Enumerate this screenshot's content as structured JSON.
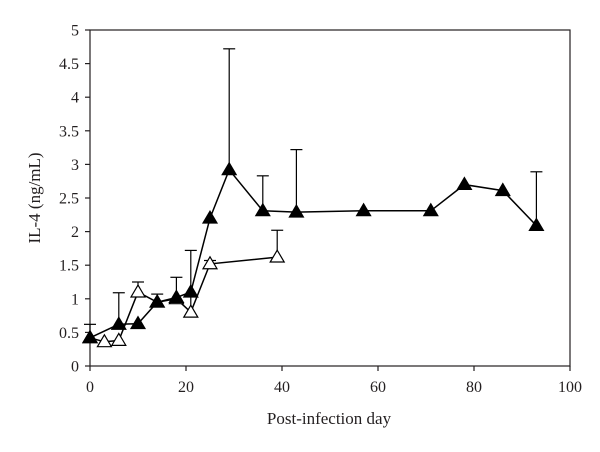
{
  "chart_data": {
    "type": "line",
    "xlabel": "Post-infection day",
    "ylabel": "IL-4 (ng/mL)",
    "xlim": [
      0,
      100
    ],
    "ylim": [
      0,
      5
    ],
    "xticks": [
      0,
      20,
      40,
      60,
      80,
      100
    ],
    "yticks": [
      0,
      0.5,
      1,
      1.5,
      2,
      2.5,
      3,
      3.5,
      4,
      4.5,
      5
    ],
    "xtick_labels": [
      "0",
      "20",
      "40",
      "60",
      "80",
      "100"
    ],
    "ytick_labels": [
      "0",
      "0.5",
      "1",
      "1.5",
      "2",
      "2.5",
      "3",
      "3.5",
      "4",
      "4.5",
      "5"
    ],
    "grid": false,
    "series": [
      {
        "marker": "filled-triangle",
        "color": "#000000",
        "points": [
          {
            "x": 0,
            "y": 0.42,
            "err": 0.2
          },
          {
            "x": 6,
            "y": 0.62,
            "err": 0.47
          },
          {
            "x": 10,
            "y": 0.63,
            "err": 0
          },
          {
            "x": 14,
            "y": 0.95,
            "err": 0.12
          },
          {
            "x": 18,
            "y": 1.02,
            "err": 0.3
          },
          {
            "x": 21,
            "y": 1.1,
            "err": 0.62
          },
          {
            "x": 25,
            "y": 2.2,
            "err": 0
          },
          {
            "x": 29,
            "y": 2.92,
            "err": 1.8
          },
          {
            "x": 36,
            "y": 2.31,
            "err": 0.52
          },
          {
            "x": 43,
            "y": 2.29,
            "err": 0.93
          },
          {
            "x": 57,
            "y": 2.31,
            "err": 0
          },
          {
            "x": 71,
            "y": 2.31,
            "err": 0
          },
          {
            "x": 78,
            "y": 2.7,
            "err": 0
          },
          {
            "x": 86,
            "y": 2.61,
            "err": 0
          },
          {
            "x": 93,
            "y": 2.09,
            "err": 0.8
          }
        ]
      },
      {
        "marker": "open-triangle",
        "color": "#000000",
        "points": [
          {
            "x": 0,
            "y": 0.42,
            "err": 0
          },
          {
            "x": 3,
            "y": 0.36,
            "err": 0
          },
          {
            "x": 6,
            "y": 0.38,
            "err": 0
          },
          {
            "x": 10,
            "y": 1.1,
            "err": 0.15
          },
          {
            "x": 14,
            "y": 0.95,
            "err": 0
          },
          {
            "x": 18,
            "y": 1.0,
            "err": 0
          },
          {
            "x": 21,
            "y": 0.8,
            "err": 0.25
          },
          {
            "x": 25,
            "y": 1.52,
            "err": 0.05
          },
          {
            "x": 39,
            "y": 1.62,
            "err": 0.4
          }
        ]
      }
    ]
  }
}
